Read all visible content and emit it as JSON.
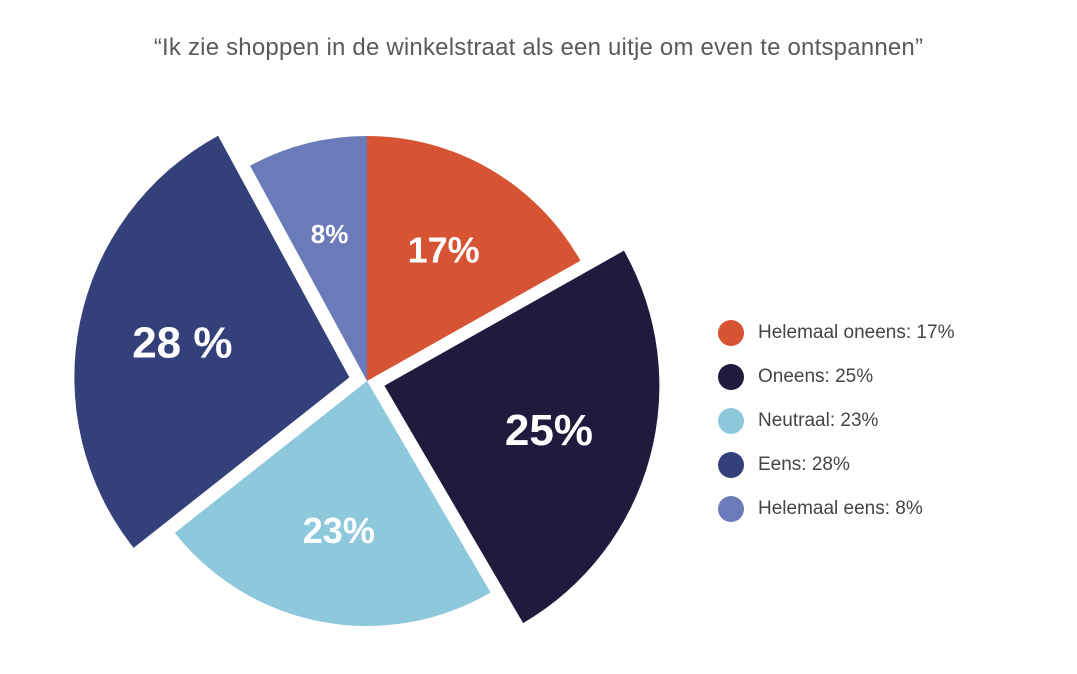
{
  "chart_data": {
    "type": "pie",
    "title": "“Ik zie shoppen in de winkelstraat als een uitje om even te ontspannen”",
    "slices": [
      {
        "label": "17%",
        "legend": "Helemaal oneens: 17%",
        "value": 17,
        "color": "#d65434",
        "exploded": false
      },
      {
        "label": "25%",
        "legend": "Oneens: 25%",
        "value": 25,
        "color": "#201a3d",
        "exploded": true
      },
      {
        "label": "23%",
        "legend": "Neutraal: 23%",
        "value": 23,
        "color": "#8ec8dc",
        "exploded": false
      },
      {
        "label": "28 %",
        "legend": "Eens: 28%",
        "value": 28,
        "color": "#34407a",
        "exploded": true
      },
      {
        "label": "8%",
        "legend": "Helemaal eens: 8%",
        "value": 8,
        "color": "#6b7bb9",
        "exploded": false
      }
    ],
    "legend_position": "right"
  }
}
